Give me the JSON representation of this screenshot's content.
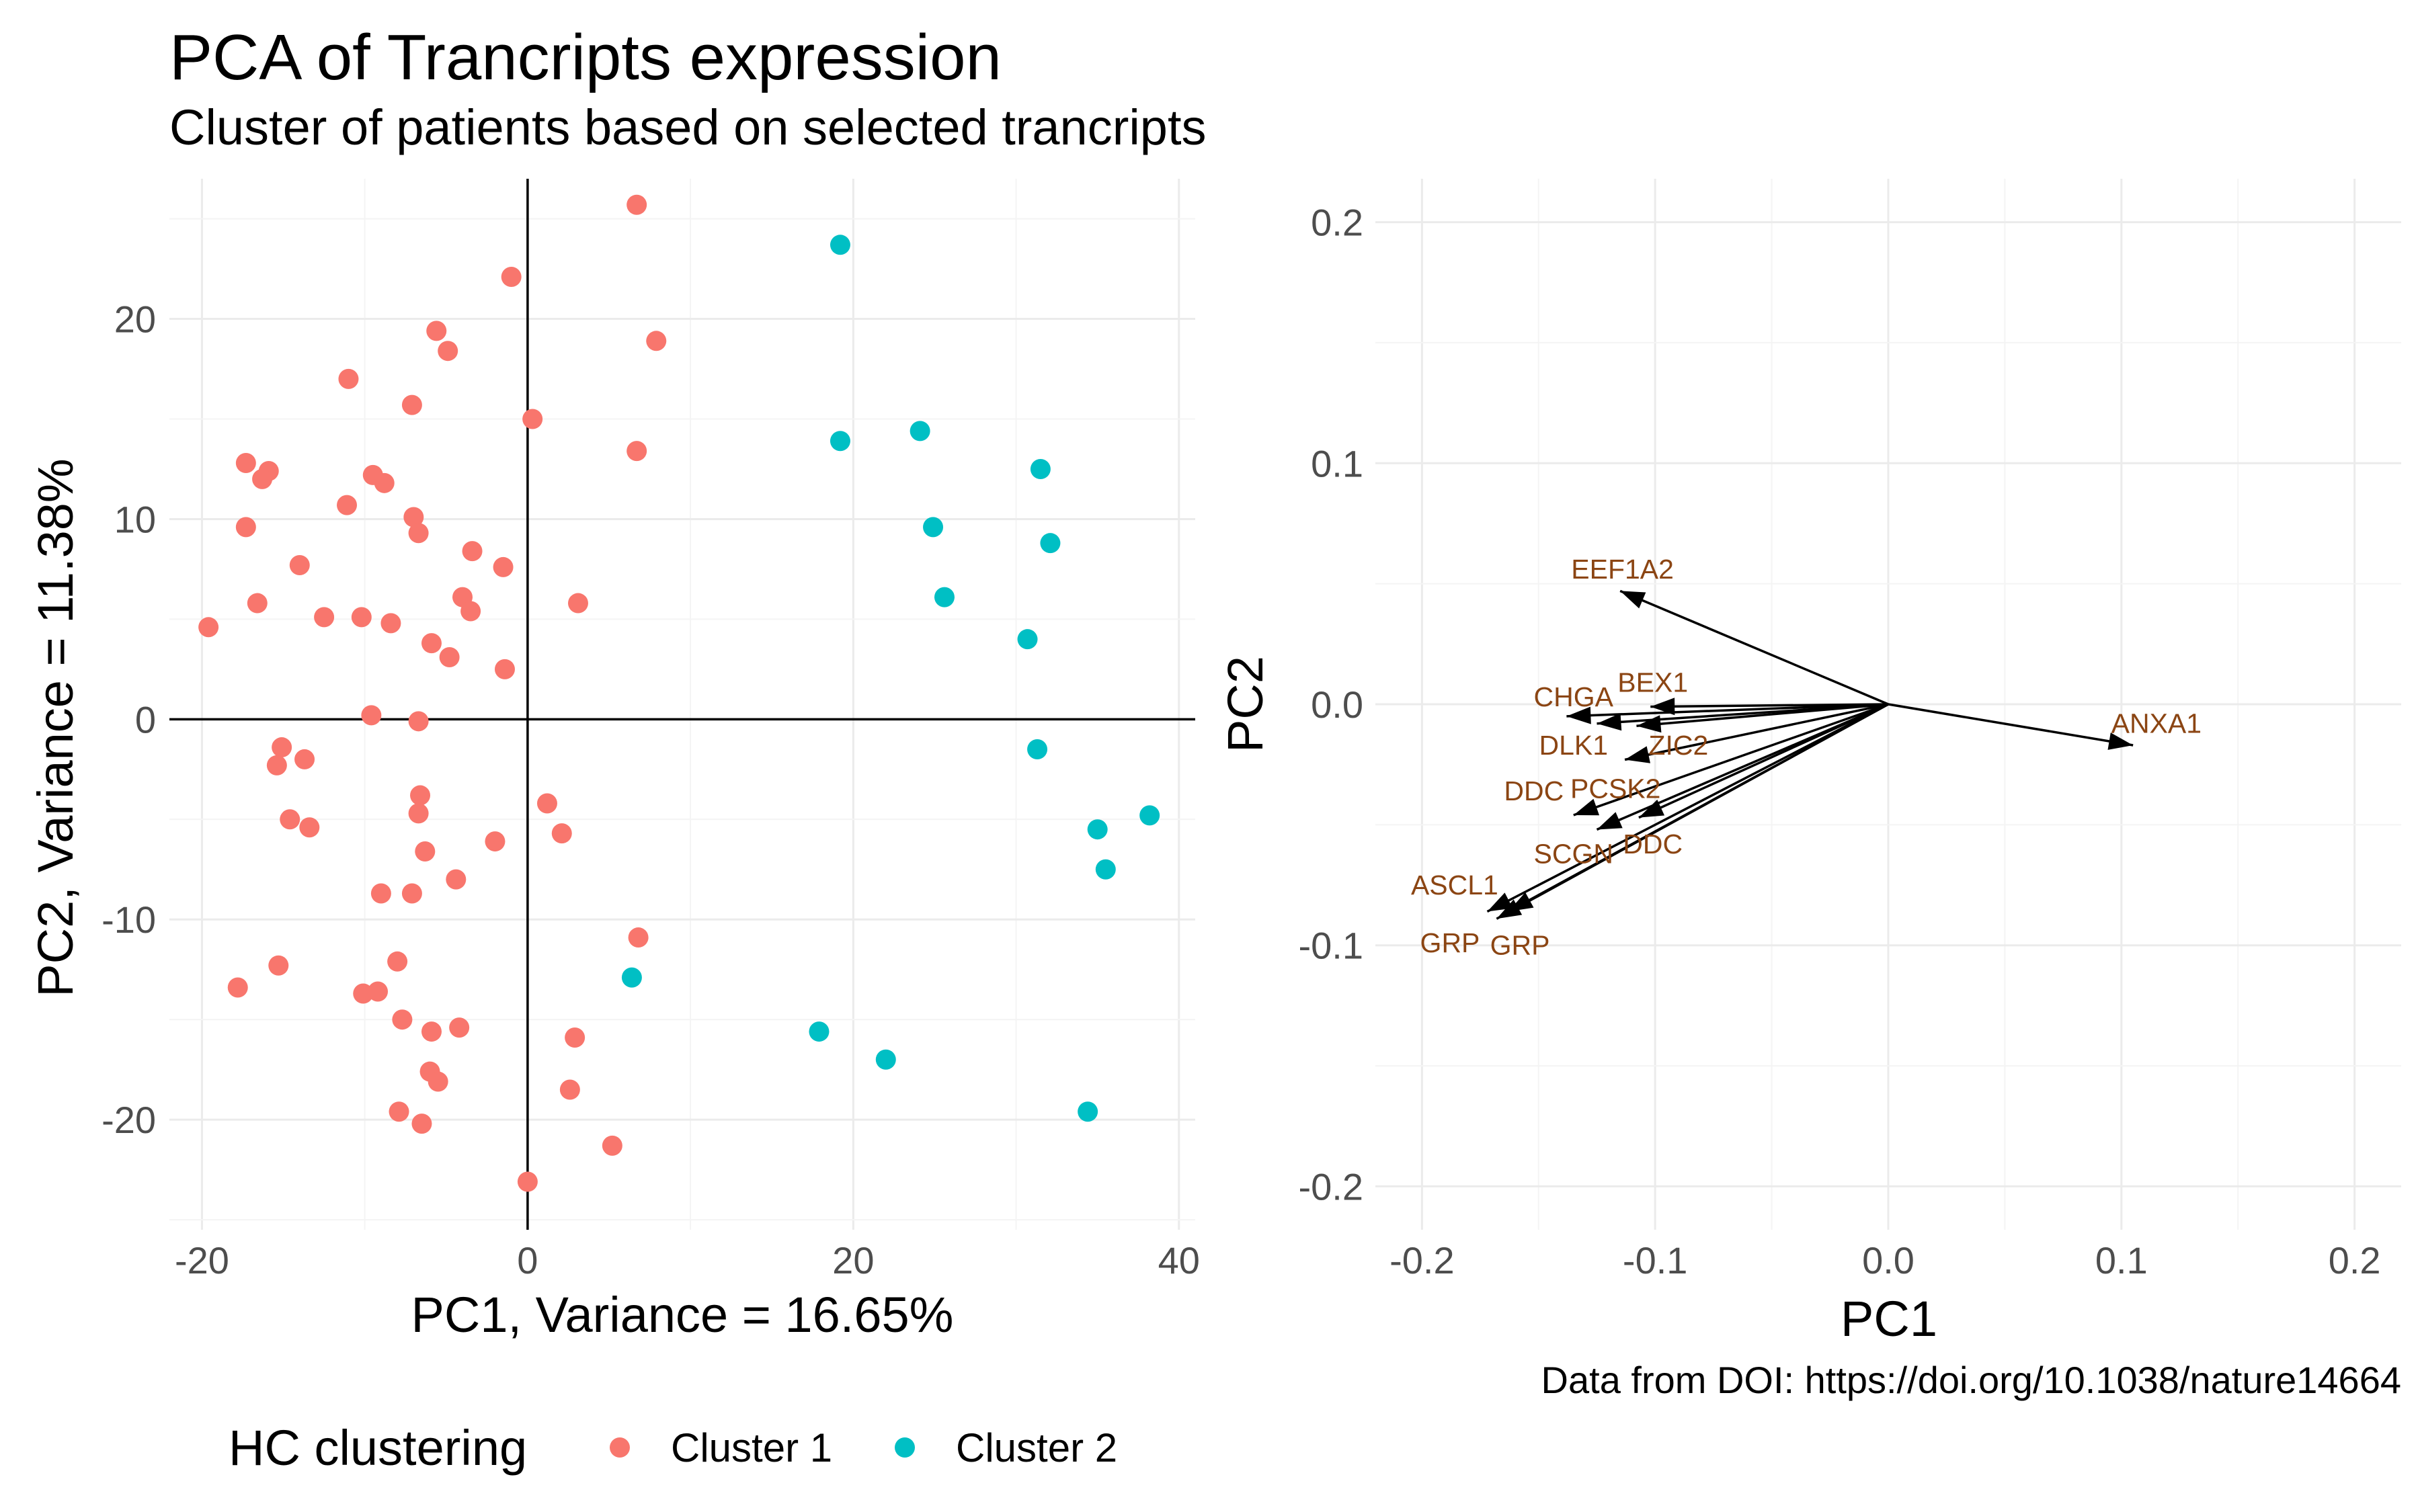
{
  "title": "PCA of Trancripts expression",
  "subtitle": "Cluster of patients based on selected trancripts",
  "caption": "Data from DOI: https://doi.org/10.1038/nature14664",
  "legend": {
    "title": "HC clustering",
    "items": [
      {
        "label": "Cluster 1",
        "color": "#F8766D"
      },
      {
        "label": "Cluster 2",
        "color": "#00BFC4"
      }
    ]
  },
  "colors": {
    "cluster1": "#F8766D",
    "cluster2": "#00BFC4",
    "var_label": "#8B4513",
    "arrow": "#000000"
  },
  "chart_data": [
    {
      "type": "scatter",
      "xlabel": "PC1, Variance = 16.65%",
      "ylabel": "PC2, Variance = 11.38%",
      "xlim": [
        -22,
        41
      ],
      "ylim": [
        -25.5,
        27
      ],
      "xticks": [
        -20,
        0,
        20,
        40
      ],
      "xtick_labels": [
        "-20",
        "0",
        "20",
        "40"
      ],
      "yticks": [
        -20,
        -10,
        0,
        10,
        20
      ],
      "yticks_labels": [
        "-20",
        "-10",
        "0",
        "10",
        "20"
      ],
      "reference_lines": {
        "x": 0,
        "y": 0
      },
      "grid": true,
      "series": [
        {
          "name": "Cluster 1",
          "points": [
            [
              6.7,
              25.7
            ],
            [
              -1,
              22.1
            ],
            [
              7.9,
              18.9
            ],
            [
              -5.6,
              19.4
            ],
            [
              -4.9,
              18.4
            ],
            [
              -11,
              17
            ],
            [
              -7.1,
              15.7
            ],
            [
              0.3,
              15
            ],
            [
              6.7,
              13.4
            ],
            [
              -17.3,
              12.8
            ],
            [
              -15.9,
              12.4
            ],
            [
              -16.3,
              12
            ],
            [
              -9.5,
              12.2
            ],
            [
              -8.8,
              11.8
            ],
            [
              -11.1,
              10.7
            ],
            [
              -7,
              10.1
            ],
            [
              -6.7,
              9.3
            ],
            [
              -17.3,
              9.6
            ],
            [
              -3.4,
              8.4
            ],
            [
              -1.5,
              7.6
            ],
            [
              -14,
              7.7
            ],
            [
              -16.6,
              5.8
            ],
            [
              -4,
              6.1
            ],
            [
              -3.5,
              5.4
            ],
            [
              3.1,
              5.8
            ],
            [
              -19.6,
              4.6
            ],
            [
              -12.5,
              5.1
            ],
            [
              -10.2,
              5.1
            ],
            [
              -8.4,
              4.8
            ],
            [
              -5.9,
              3.8
            ],
            [
              -4.8,
              3.1
            ],
            [
              -1.4,
              2.5
            ],
            [
              -9.6,
              0.2
            ],
            [
              -6.7,
              -0.1
            ],
            [
              -15.1,
              -1.4
            ],
            [
              -15.4,
              -2.3
            ],
            [
              -13.7,
              -2
            ],
            [
              -6.6,
              -3.8
            ],
            [
              1.2,
              -4.2
            ],
            [
              -14.6,
              -5
            ],
            [
              -13.4,
              -5.4
            ],
            [
              -6.7,
              -4.7
            ],
            [
              2.1,
              -5.7
            ],
            [
              -2,
              -6.1
            ],
            [
              -6.3,
              -6.6
            ],
            [
              -4.4,
              -8
            ],
            [
              -9,
              -8.7
            ],
            [
              -7.1,
              -8.7
            ],
            [
              6.8,
              -10.9
            ],
            [
              -8,
              -12.1
            ],
            [
              -15.3,
              -12.3
            ],
            [
              -17.8,
              -13.4
            ],
            [
              -10.1,
              -13.7
            ],
            [
              -9.2,
              -13.6
            ],
            [
              -7.7,
              -15
            ],
            [
              -5.9,
              -15.6
            ],
            [
              -4.2,
              -15.4
            ],
            [
              2.9,
              -15.9
            ],
            [
              -6,
              -17.6
            ],
            [
              -5.5,
              -18.1
            ],
            [
              2.6,
              -18.5
            ],
            [
              -7.9,
              -19.6
            ],
            [
              -6.5,
              -20.2
            ],
            [
              5.2,
              -21.3
            ],
            [
              0,
              -23.1
            ]
          ]
        },
        {
          "name": "Cluster 2",
          "points": [
            [
              19.2,
              23.7
            ],
            [
              19.2,
              13.9
            ],
            [
              24.1,
              14.4
            ],
            [
              31.5,
              12.5
            ],
            [
              24.9,
              9.6
            ],
            [
              32.1,
              8.8
            ],
            [
              25.6,
              6.1
            ],
            [
              30.7,
              4
            ],
            [
              31.3,
              -1.5
            ],
            [
              38.2,
              -4.8
            ],
            [
              35,
              -5.5
            ],
            [
              35.5,
              -7.5
            ],
            [
              6.4,
              -12.9
            ],
            [
              17.9,
              -15.6
            ],
            [
              22,
              -17
            ],
            [
              34.4,
              -19.6
            ]
          ]
        }
      ]
    },
    {
      "type": "biplot",
      "xlabel": "PC1",
      "ylabel": "PC2",
      "xlim": [
        -0.22,
        0.22
      ],
      "ylim": [
        -0.218,
        0.218
      ],
      "xticks": [
        -0.2,
        -0.1,
        0.0,
        0.1,
        0.2
      ],
      "xtick_labels": [
        "-0.2",
        "-0.1",
        "0.0",
        "0.1",
        "0.2"
      ],
      "yticks": [
        -0.2,
        -0.1,
        0.0,
        0.1,
        0.2
      ],
      "ytick_labels": [
        "-0.2",
        "-0.1",
        "0.0",
        "0.1",
        "0.2"
      ],
      "grid": true,
      "vectors": [
        {
          "label": "EEF1A2",
          "x": -0.115,
          "y": 0.047,
          "lx": -0.114,
          "ly": 0.056
        },
        {
          "label": "BEX1",
          "x": -0.102,
          "y": -0.001,
          "lx": -0.101,
          "ly": 0.009
        },
        {
          "label": "CHGA",
          "x": -0.138,
          "y": -0.005,
          "lx": -0.135,
          "ly": 0.003
        },
        {
          "label": "DLK1",
          "x": -0.125,
          "y": -0.008,
          "lx": -0.135,
          "ly": -0.017
        },
        {
          "label": "ZIC2",
          "x": -0.108,
          "y": -0.009,
          "lx": -0.09,
          "ly": -0.017
        },
        {
          "label": "DDC",
          "x": -0.135,
          "y": -0.046,
          "lx": -0.152,
          "ly": -0.036
        },
        {
          "label": "PCSK2",
          "x": -0.113,
          "y": -0.023,
          "lx": -0.117,
          "ly": -0.035
        },
        {
          "label": "DDC",
          "x": -0.107,
          "y": -0.047,
          "lx": -0.101,
          "ly": -0.058
        },
        {
          "label": "SCGN",
          "x": -0.125,
          "y": -0.052,
          "lx": -0.135,
          "ly": -0.062
        },
        {
          "label": "ASCL1",
          "x": -0.172,
          "y": -0.086,
          "lx": -0.186,
          "ly": -0.075
        },
        {
          "label": "GRP",
          "x": -0.163,
          "y": -0.086,
          "lx": -0.158,
          "ly": -0.1
        },
        {
          "label": "GRP",
          "x": -0.168,
          "y": -0.089,
          "lx": -0.188,
          "ly": -0.099
        },
        {
          "label": "ANXA1",
          "x": 0.105,
          "y": -0.017,
          "lx": 0.115,
          "ly": -0.008
        }
      ]
    }
  ]
}
